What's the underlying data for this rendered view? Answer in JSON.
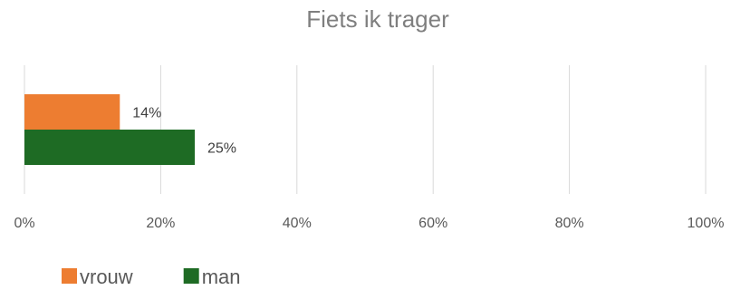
{
  "chart_data": {
    "type": "bar",
    "orientation": "horizontal",
    "title": "Fiets ik trager",
    "categories": [
      ""
    ],
    "series": [
      {
        "name": "vrouw",
        "values": [
          14
        ],
        "labels": [
          "14%"
        ],
        "color": "#ed7d31"
      },
      {
        "name": "man",
        "values": [
          25
        ],
        "labels": [
          "25%"
        ],
        "color": "#1e6b24"
      }
    ],
    "xlim": [
      0,
      100
    ],
    "ticks": [
      0,
      20,
      40,
      60,
      80,
      100
    ],
    "tick_labels": [
      "0%",
      "20%",
      "40%",
      "60%",
      "80%",
      "100%"
    ],
    "grid": true,
    "legend": "bottom-left"
  }
}
